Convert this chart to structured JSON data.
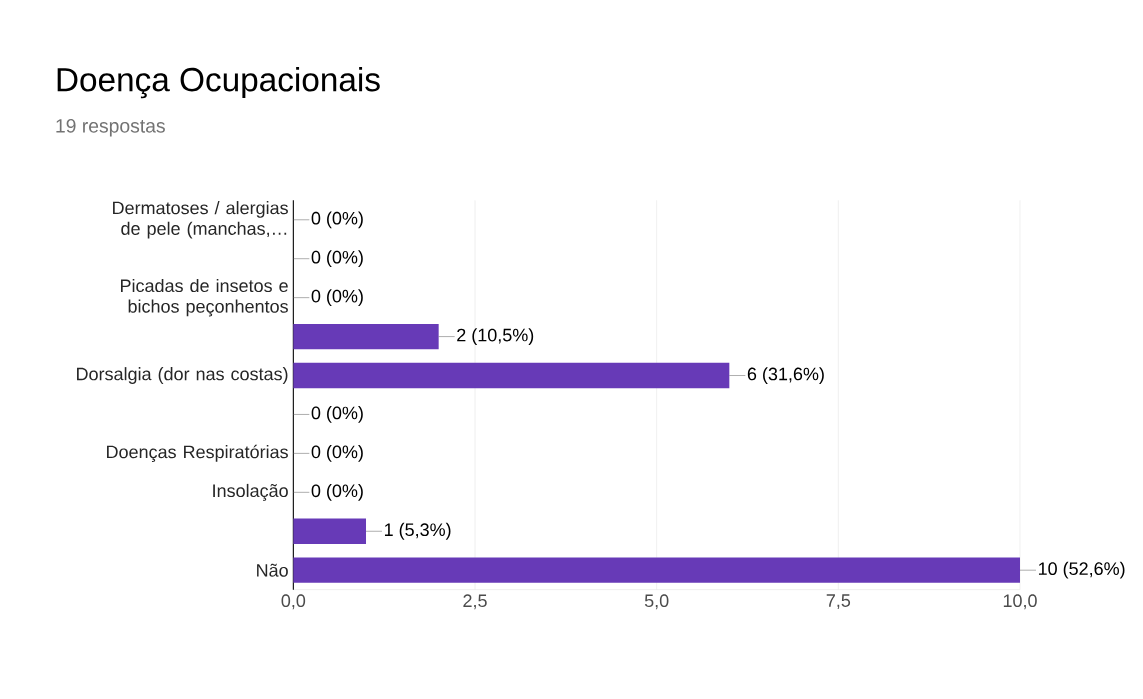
{
  "chart_data": {
    "type": "bar",
    "orientation": "horizontal",
    "title": "Doença Ocupacionais",
    "subtitle": "19 respostas",
    "categories": [
      "Dermatoses / alergias de pele (manchas,…",
      null,
      "Picadas de insetos e bichos peçonhentos",
      null,
      "Dorsalgia (dor nas costas)",
      null,
      "Doenças Respiratórias",
      "Insolação",
      null,
      "Não"
    ],
    "values": [
      0,
      0,
      0,
      2,
      6,
      0,
      0,
      0,
      1,
      10
    ],
    "value_labels": [
      "0 (0%)",
      "0 (0%)",
      "0 (0%)",
      "2 (10,5%)",
      "6 (31,6%)",
      "0 (0%)",
      "0 (0%)",
      "0 (0%)",
      "1 (5,3%)",
      "10 (52,6%)"
    ],
    "color": "#673ab7",
    "xlim": [
      0,
      10
    ],
    "xticks": [
      {
        "value": 0,
        "label": "0,0"
      },
      {
        "value": 2.5,
        "label": "2,5"
      },
      {
        "value": 5,
        "label": "5,0"
      },
      {
        "value": 7.5,
        "label": "7,5"
      },
      {
        "value": 10,
        "label": "10,0"
      }
    ],
    "grid": "x"
  }
}
